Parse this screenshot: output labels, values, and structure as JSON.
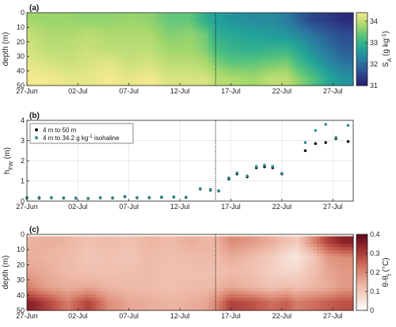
{
  "chart_data": [
    {
      "panel_label": "(a)",
      "type": "heatmap",
      "title": "",
      "ylabel": "depth (m)",
      "xlabel": "",
      "x_tick_labels": [
        "27-Jun",
        "02-Jul",
        "07-Jul",
        "12-Jul",
        "17-Jul",
        "22-Jul",
        "27-Jul"
      ],
      "x_tick_days": [
        0,
        5,
        10,
        15,
        20,
        25,
        30
      ],
      "x_range_days": [
        0,
        32
      ],
      "y_tick_labels": [
        "0",
        "10",
        "20",
        "30",
        "40",
        "50"
      ],
      "y_ticks": [
        0,
        10,
        20,
        30,
        40,
        50
      ],
      "y_range": [
        0,
        50
      ],
      "y_inverted": true,
      "colorbar": {
        "label": "S",
        "label_sub": "A",
        "label_units": "(g kg",
        "label_exp": "-1",
        "label_close": ")",
        "ticks": [
          "31",
          "32",
          "33",
          "34"
        ],
        "tick_values": [
          31,
          32,
          33,
          34
        ],
        "range": [
          31,
          34.4
        ],
        "colors": [
          "#2a1a6e",
          "#2d4a8f",
          "#2b77a0",
          "#22a39a",
          "#4fc07e",
          "#a6d86b",
          "#f3e98e"
        ]
      },
      "vertical_line_day": 18.5,
      "depth_levels": [
        5,
        15,
        25,
        35,
        45
      ],
      "days": [
        0,
        2,
        4,
        6,
        8,
        10,
        12,
        14,
        16,
        17.5,
        18.5,
        20,
        22,
        24,
        25.5,
        26.5,
        28,
        29.5,
        31
      ],
      "salinity": [
        [
          33.8,
          33.75,
          33.75,
          33.7,
          33.7,
          33.75,
          33.7,
          33.4,
          33.4,
          32.9,
          32.7,
          32.5,
          32.4,
          32.4,
          32.2,
          31.9,
          31.5,
          31.4,
          31.2
        ],
        [
          34.1,
          33.9,
          33.9,
          34.0,
          33.9,
          33.9,
          33.9,
          33.6,
          33.7,
          33.5,
          32.9,
          32.8,
          32.7,
          32.6,
          32.5,
          32.4,
          32.1,
          31.8,
          31.6
        ],
        [
          34.2,
          34.0,
          34.0,
          34.1,
          34.0,
          34.0,
          34.0,
          33.8,
          33.8,
          33.6,
          33.2,
          33.0,
          32.9,
          33.0,
          33.0,
          32.8,
          32.4,
          32.1,
          31.8
        ],
        [
          34.3,
          34.2,
          34.1,
          34.2,
          34.3,
          34.1,
          34.2,
          34.0,
          34.0,
          33.9,
          33.6,
          33.4,
          33.4,
          33.5,
          33.6,
          33.2,
          32.8,
          32.4,
          32.1
        ],
        [
          34.4,
          34.4,
          34.3,
          34.3,
          34.4,
          34.3,
          34.4,
          34.2,
          34.2,
          34.2,
          34.0,
          33.9,
          33.8,
          34.0,
          34.0,
          33.7,
          33.3,
          32.8,
          32.5
        ]
      ]
    },
    {
      "panel_label": "(b)",
      "type": "scatter",
      "title": "",
      "ylabel": "h",
      "ylabel_sub": "FW",
      "ylabel_units": "(m)",
      "xlabel": "",
      "x_tick_labels": [
        "27-Jun",
        "02-Jul",
        "07-Jul",
        "12-Jul",
        "17-Jul",
        "22-Jul",
        "27-Jul"
      ],
      "x_tick_days": [
        0,
        5,
        10,
        15,
        20,
        25,
        30
      ],
      "x_range_days": [
        0,
        32
      ],
      "y_tick_labels": [
        "0",
        "1",
        "2",
        "3",
        "4"
      ],
      "y_ticks": [
        0,
        1,
        2,
        3,
        4
      ],
      "y_range": [
        0,
        4
      ],
      "grid": true,
      "legend_position": "top-left",
      "vertical_line_day": 18.5,
      "series": [
        {
          "name": "4 m to 50 m",
          "color": "#111111",
          "points": [
            [
              0,
              0.15
            ],
            [
              1.2,
              0.15
            ],
            [
              2.4,
              0.16
            ],
            [
              3.6,
              0.15
            ],
            [
              4.8,
              0.14
            ],
            [
              6,
              0.13
            ],
            [
              7.2,
              0.16
            ],
            [
              8.4,
              0.15
            ],
            [
              9.6,
              0.22
            ],
            [
              10.8,
              0.16
            ],
            [
              12,
              0.17
            ],
            [
              13.2,
              0.19
            ],
            [
              14.4,
              0.2
            ],
            [
              15.6,
              0.18
            ],
            [
              17,
              0.6
            ],
            [
              18,
              0.55
            ],
            [
              18.8,
              0.5
            ],
            [
              19.8,
              1.1
            ],
            [
              20.6,
              1.35
            ],
            [
              21.6,
              1.2
            ],
            [
              22.5,
              1.65
            ],
            [
              23.3,
              1.7
            ],
            [
              24.1,
              1.65
            ],
            [
              25,
              1.35
            ],
            [
              27.3,
              2.5
            ],
            [
              28.3,
              2.85
            ],
            [
              29.3,
              2.9
            ],
            [
              30.3,
              3.1
            ],
            [
              31.5,
              2.95
            ]
          ]
        },
        {
          "name": "4 m to 34.2 g kg",
          "name_sup": "-1",
          "name_suffix": " isohaline",
          "color": "#2a8f8a",
          "points": [
            [
              0,
              0.18
            ],
            [
              1.2,
              0.19
            ],
            [
              2.4,
              0.18
            ],
            [
              3.6,
              0.17
            ],
            [
              4.8,
              0.16
            ],
            [
              6,
              0.14
            ],
            [
              7.2,
              0.18
            ],
            [
              8.4,
              0.17
            ],
            [
              9.6,
              0.24
            ],
            [
              10.8,
              0.18
            ],
            [
              12,
              0.19
            ],
            [
              13.2,
              0.21
            ],
            [
              14.4,
              0.22
            ],
            [
              15.6,
              0.2
            ],
            [
              17,
              0.62
            ],
            [
              18,
              0.58
            ],
            [
              18.8,
              0.52
            ],
            [
              19.8,
              1.15
            ],
            [
              20.6,
              1.4
            ],
            [
              21.6,
              1.25
            ],
            [
              22.5,
              1.72
            ],
            [
              23.3,
              1.78
            ],
            [
              24.1,
              1.72
            ],
            [
              25,
              1.38
            ],
            [
              27.3,
              2.9
            ],
            [
              28.3,
              3.5
            ],
            [
              29.3,
              3.8
            ],
            [
              30.3,
              3.15
            ],
            [
              31.5,
              3.75
            ]
          ]
        }
      ]
    },
    {
      "panel_label": "(c)",
      "type": "heatmap",
      "title": "",
      "ylabel": "depth (m)",
      "xlabel": "",
      "x_tick_labels": [
        "27-Jun",
        "02-Jul",
        "07-Jul",
        "12-Jul",
        "17-Jul",
        "22-Jul",
        "27-Jul"
      ],
      "x_tick_days": [
        0,
        5,
        10,
        15,
        20,
        25,
        30
      ],
      "x_range_days": [
        0,
        32
      ],
      "y_tick_labels": [
        "0",
        "10",
        "20",
        "30",
        "40",
        "50"
      ],
      "y_ticks": [
        0,
        10,
        20,
        30,
        40,
        50
      ],
      "y_range": [
        0,
        50
      ],
      "y_inverted": true,
      "colorbar": {
        "label": "θ-θ",
        "label_sub": "f",
        "label_units": "(°C)",
        "ticks": [
          "0",
          "0.1",
          "0.2",
          "0.3",
          "0.4"
        ],
        "tick_values": [
          0,
          0.1,
          0.2,
          0.3,
          0.4
        ],
        "range": [
          0,
          0.4
        ],
        "colors": [
          "#ffffff",
          "#f6dcd2",
          "#eeb9a8",
          "#dc8c76",
          "#c4594c",
          "#962a2f",
          "#5e0b17"
        ]
      },
      "vertical_line_day": 18.5,
      "depth_levels": [
        5,
        15,
        25,
        35,
        45
      ],
      "days": [
        0,
        2,
        4,
        6,
        8,
        10,
        12,
        14,
        16,
        17.5,
        18.5,
        20,
        22,
        24,
        25.5,
        26.5,
        28,
        29.5,
        31
      ],
      "theta_anomaly": [
        [
          0.14,
          0.15,
          0.14,
          0.12,
          0.13,
          0.12,
          0.14,
          0.13,
          0.15,
          0.14,
          0.14,
          0.2,
          0.18,
          0.15,
          0.12,
          0.1,
          0.2,
          0.3,
          0.35
        ],
        [
          0.15,
          0.14,
          0.13,
          0.11,
          0.12,
          0.11,
          0.13,
          0.12,
          0.13,
          0.13,
          0.13,
          0.15,
          0.13,
          0.1,
          0.06,
          0.05,
          0.1,
          0.18,
          0.2
        ],
        [
          0.17,
          0.15,
          0.13,
          0.12,
          0.12,
          0.12,
          0.13,
          0.12,
          0.12,
          0.12,
          0.12,
          0.13,
          0.12,
          0.09,
          0.08,
          0.08,
          0.12,
          0.16,
          0.18
        ],
        [
          0.22,
          0.17,
          0.15,
          0.16,
          0.14,
          0.13,
          0.13,
          0.12,
          0.13,
          0.13,
          0.14,
          0.16,
          0.14,
          0.12,
          0.13,
          0.12,
          0.14,
          0.15,
          0.18
        ],
        [
          0.36,
          0.3,
          0.22,
          0.3,
          0.2,
          0.16,
          0.15,
          0.14,
          0.15,
          0.16,
          0.2,
          0.3,
          0.28,
          0.24,
          0.26,
          0.22,
          0.24,
          0.26,
          0.28
        ]
      ]
    }
  ]
}
